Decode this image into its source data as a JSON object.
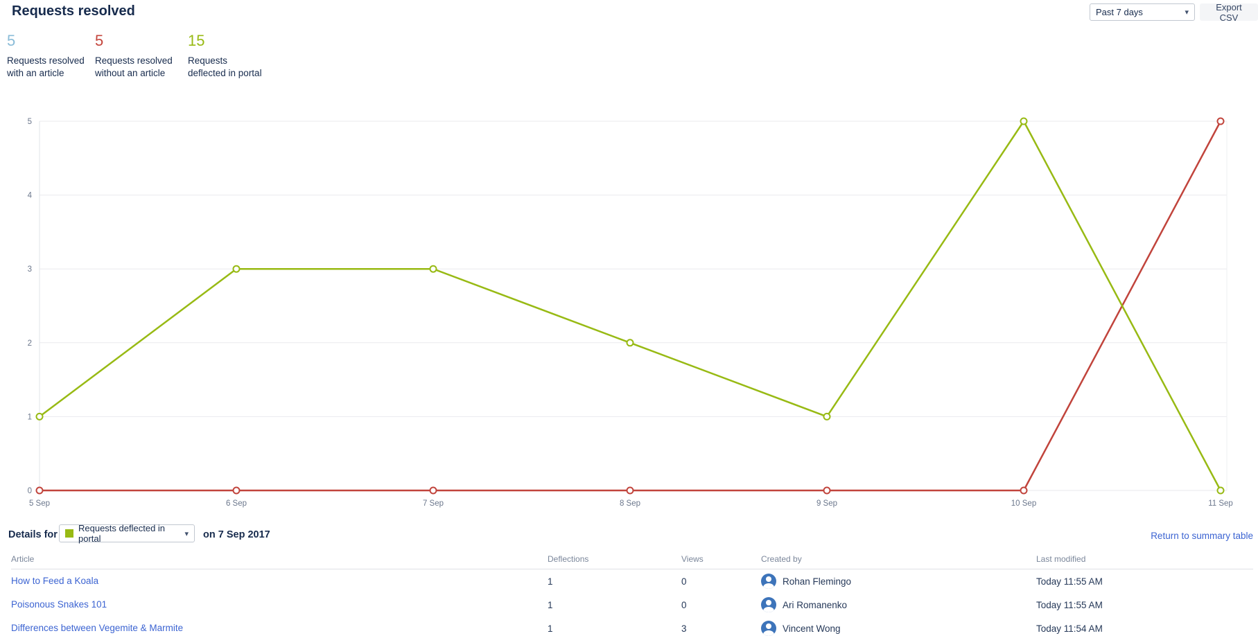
{
  "header": {
    "title": "Requests resolved",
    "range_selected": "Past 7 days",
    "export_label": "Export CSV"
  },
  "icons": {
    "chevron_down": "▾"
  },
  "stats": [
    {
      "value": "5",
      "label": "Requests resolved with an article",
      "color": "#8abcd8"
    },
    {
      "value": "5",
      "label": "Requests resolved without an article",
      "color": "#c4453c"
    },
    {
      "value": "15",
      "label": "Requests deflected in portal",
      "color": "#98ba14"
    }
  ],
  "chart_data": {
    "type": "line",
    "x": [
      "5 Sep",
      "6 Sep",
      "7 Sep",
      "8 Sep",
      "9 Sep",
      "10 Sep",
      "11 Sep"
    ],
    "series": [
      {
        "name": "Requests deflected in portal",
        "color": "#98ba14",
        "values": [
          1,
          3,
          3,
          2,
          1,
          5,
          0
        ]
      },
      {
        "name": "Requests resolved without an article",
        "color": "#c1443c",
        "values": [
          0,
          0,
          0,
          0,
          0,
          0,
          5
        ]
      }
    ],
    "ylim": [
      0,
      5
    ],
    "yticks": [
      0,
      1,
      2,
      3,
      4,
      5
    ],
    "grid": true,
    "legend": "none",
    "xlabel": "",
    "ylabel": ""
  },
  "details": {
    "label": "Details for",
    "selected_metric": "Requests deflected in portal",
    "metric_color": "#98ba14",
    "date_text": "on 7 Sep 2017",
    "return_link": "Return to summary table"
  },
  "table": {
    "columns": [
      "Article",
      "Deflections",
      "Views",
      "Created by",
      "Last modified"
    ],
    "rows": [
      {
        "article": "How to Feed a Koala",
        "deflections": "1",
        "views": "0",
        "created_by": "Rohan Flemingo",
        "last_modified": "Today 11:55 AM"
      },
      {
        "article": "Poisonous Snakes 101",
        "deflections": "1",
        "views": "0",
        "created_by": "Ari Romanenko",
        "last_modified": "Today 11:55 AM"
      },
      {
        "article": "Differences between Vegemite & Marmite",
        "deflections": "1",
        "views": "3",
        "created_by": "Vincent Wong",
        "last_modified": "Today 11:54 AM"
      }
    ]
  }
}
